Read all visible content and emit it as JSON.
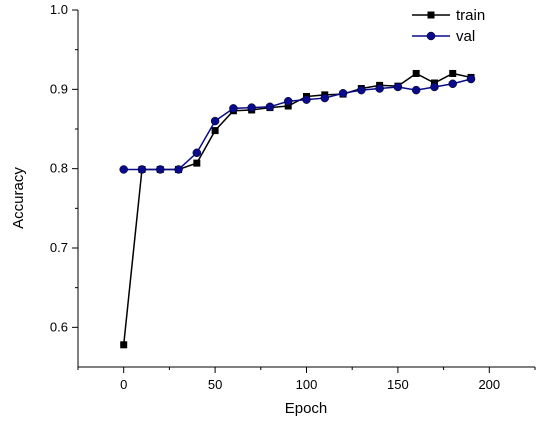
{
  "chart_data": {
    "type": "line",
    "xlabel": "Epoch",
    "ylabel": "Accuracy",
    "xlim": [
      -25,
      225
    ],
    "ylim": [
      0.55,
      1.0
    ],
    "x_ticks": [
      0,
      50,
      100,
      150,
      200
    ],
    "x_tick_labels": [
      "0",
      "50",
      "100",
      "150",
      "200"
    ],
    "y_ticks": [
      0.6,
      0.7,
      0.8,
      0.9,
      1.0
    ],
    "y_tick_labels": [
      "0.6",
      "0.7",
      "0.8",
      "0.9",
      "1.0"
    ],
    "grid": false,
    "legend_position": "top-right",
    "x": [
      0,
      10,
      20,
      30,
      40,
      50,
      60,
      70,
      80,
      90,
      100,
      110,
      120,
      130,
      140,
      150,
      160,
      170,
      180,
      190
    ],
    "series": [
      {
        "name": "train",
        "marker": "square",
        "color": "#000000",
        "values": [
          0.578,
          0.799,
          0.799,
          0.799,
          0.807,
          0.848,
          0.873,
          0.874,
          0.877,
          0.879,
          0.891,
          0.893,
          0.894,
          0.901,
          0.905,
          0.904,
          0.92,
          0.908,
          0.92,
          0.915
        ]
      },
      {
        "name": "val",
        "marker": "circle",
        "color": "#0a0a8c",
        "values": [
          0.799,
          0.799,
          0.799,
          0.799,
          0.82,
          0.86,
          0.876,
          0.877,
          0.878,
          0.885,
          0.887,
          0.889,
          0.895,
          0.899,
          0.901,
          0.903,
          0.899,
          0.903,
          0.907,
          0.913
        ]
      }
    ]
  }
}
